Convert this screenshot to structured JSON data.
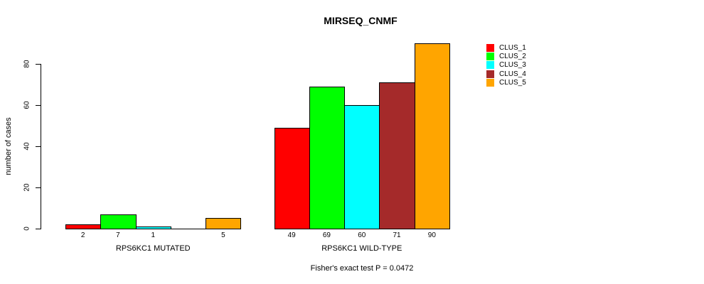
{
  "chart_data": {
    "type": "bar",
    "title": "MIRSEQ_CNMF",
    "ylabel": "number of cases",
    "caption": "Fisher's exact test P = 0.0472",
    "ylim": [
      0,
      90
    ],
    "yticks": [
      0,
      20,
      40,
      60,
      80
    ],
    "grid": false,
    "legend_position": "right",
    "categories": [
      "RPS6KC1 MUTATED",
      "RPS6KC1 WILD-TYPE"
    ],
    "series": [
      {
        "name": "CLUS_1",
        "color": "#FF0000",
        "values": [
          2,
          49
        ]
      },
      {
        "name": "CLUS_2",
        "color": "#00FF00",
        "values": [
          7,
          69
        ]
      },
      {
        "name": "CLUS_3",
        "color": "#00FFFF",
        "values": [
          1,
          60
        ]
      },
      {
        "name": "CLUS_4",
        "color": "#A52A2A",
        "values": [
          0,
          71
        ]
      },
      {
        "name": "CLUS_5",
        "color": "#FFA500",
        "values": [
          5,
          90
        ]
      }
    ],
    "bar_value_labels": [
      [
        "2",
        "7",
        "1",
        "",
        "5"
      ],
      [
        "49",
        "69",
        "60",
        "71",
        "90"
      ]
    ]
  }
}
